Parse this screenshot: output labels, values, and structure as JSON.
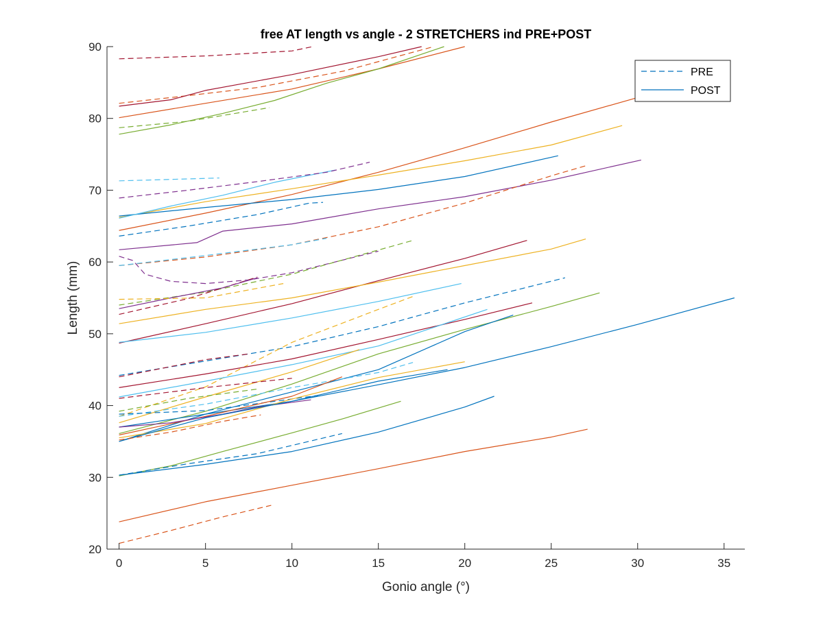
{
  "chart_data": {
    "type": "line",
    "title": "free AT length vs angle - 2 STRETCHERS ind PRE+POST",
    "xlabel": "Gonio angle (°)",
    "ylabel": "Length (mm)",
    "xlim": [
      -0.7,
      36.2
    ],
    "ylim": [
      20,
      90
    ],
    "xticks": [
      0,
      5,
      10,
      15,
      20,
      25,
      30,
      35
    ],
    "yticks": [
      20,
      30,
      40,
      50,
      60,
      70,
      80,
      90
    ],
    "grid": false,
    "legend": {
      "position": "top-right",
      "entries": [
        {
          "label": "PRE",
          "style": "dashed",
          "color": "#0072BD"
        },
        {
          "label": "POST",
          "style": "solid",
          "color": "#0072BD"
        }
      ]
    },
    "series": [
      {
        "color": "#A2142F",
        "style": "dashed",
        "points": [
          [
            0,
            88.3
          ],
          [
            5,
            88.7
          ],
          [
            10,
            89.4
          ],
          [
            11.2,
            90
          ]
        ]
      },
      {
        "color": "#D95319",
        "style": "dashed",
        "points": [
          [
            0,
            82.1
          ],
          [
            3,
            82.9
          ],
          [
            8,
            84.3
          ],
          [
            13,
            86.6
          ],
          [
            18.2,
            90
          ]
        ]
      },
      {
        "color": "#A2142F",
        "style": "solid",
        "points": [
          [
            0,
            81.7
          ],
          [
            3,
            82.6
          ],
          [
            5,
            83.9
          ],
          [
            10,
            86.1
          ],
          [
            15,
            88.6
          ],
          [
            17.5,
            90
          ]
        ]
      },
      {
        "color": "#D95319",
        "style": "solid",
        "points": [
          [
            0,
            80.1
          ],
          [
            5,
            82.1
          ],
          [
            10,
            84.1
          ],
          [
            15,
            86.9
          ],
          [
            20,
            90
          ]
        ]
      },
      {
        "color": "#77AC30",
        "style": "dashed",
        "points": [
          [
            0,
            78.7
          ],
          [
            4,
            79.6
          ],
          [
            8.7,
            81.5
          ]
        ]
      },
      {
        "color": "#77AC30",
        "style": "solid",
        "points": [
          [
            0,
            77.8
          ],
          [
            3,
            79.1
          ],
          [
            6,
            80.7
          ],
          [
            9,
            82.5
          ],
          [
            12,
            84.9
          ],
          [
            15,
            86.9
          ],
          [
            18.8,
            90
          ]
        ]
      },
      {
        "color": "#D95319",
        "style": "solid",
        "points": [
          [
            0,
            64.4
          ],
          [
            5,
            66.8
          ],
          [
            10,
            69.4
          ],
          [
            15,
            72.5
          ],
          [
            20,
            75.9
          ],
          [
            25,
            79.5
          ],
          [
            30,
            82.9
          ],
          [
            31.8,
            84.2
          ]
        ]
      },
      {
        "color": "#EDB120",
        "style": "solid",
        "points": [
          [
            0,
            66.2
          ],
          [
            5,
            68.4
          ],
          [
            10,
            70.2
          ],
          [
            15,
            72.1
          ],
          [
            20,
            74.1
          ],
          [
            25,
            76.3
          ],
          [
            29.1,
            79
          ]
        ]
      },
      {
        "color": "#0072BD",
        "style": "solid",
        "points": [
          [
            0,
            66.4
          ],
          [
            5,
            67.6
          ],
          [
            10,
            68.7
          ],
          [
            15,
            70.1
          ],
          [
            20,
            71.9
          ],
          [
            25.4,
            74.8
          ]
        ]
      },
      {
        "color": "#7E2F8E",
        "style": "solid",
        "points": [
          [
            0,
            61.7
          ],
          [
            4.5,
            62.7
          ],
          [
            6,
            64.3
          ],
          [
            10,
            65.3
          ],
          [
            15,
            67.4
          ],
          [
            20,
            69.1
          ],
          [
            25,
            71.4
          ],
          [
            30.2,
            74.2
          ]
        ]
      },
      {
        "color": "#4DBEEE",
        "style": "solid",
        "points": [
          [
            0,
            66.1
          ],
          [
            3,
            67.8
          ],
          [
            6,
            69.3
          ],
          [
            9,
            71.1
          ],
          [
            12.5,
            72.8
          ]
        ]
      },
      {
        "color": "#4DBEEE",
        "style": "dashed",
        "points": [
          [
            0,
            71.3
          ],
          [
            3,
            71.5
          ],
          [
            5.8,
            71.7
          ]
        ]
      },
      {
        "color": "#7E2F8E",
        "style": "dashed",
        "points": [
          [
            0,
            68.9
          ],
          [
            4,
            70
          ],
          [
            8,
            71.2
          ],
          [
            12,
            72.5
          ],
          [
            14.5,
            73.9
          ]
        ]
      },
      {
        "color": "#D95319",
        "style": "dashed",
        "points": [
          [
            0,
            59.5
          ],
          [
            5,
            60.7
          ],
          [
            10,
            62.4
          ],
          [
            15,
            64.9
          ],
          [
            20,
            68.2
          ],
          [
            25,
            72
          ],
          [
            27,
            73.4
          ]
        ]
      },
      {
        "color": "#0072BD",
        "style": "dashed",
        "points": [
          [
            0,
            63.6
          ],
          [
            4,
            65
          ],
          [
            8,
            66.6
          ],
          [
            11,
            68.2
          ],
          [
            11.8,
            68.3
          ]
        ]
      },
      {
        "color": "#4DBEEE",
        "style": "dashed",
        "points": [
          [
            0,
            59.5
          ],
          [
            5,
            60.9
          ],
          [
            10,
            62.4
          ],
          [
            12,
            63.3
          ]
        ]
      },
      {
        "color": "#7E2F8E",
        "style": "dashed",
        "points": [
          [
            0,
            60.8
          ],
          [
            0.8,
            60.2
          ],
          [
            1.5,
            58.3
          ],
          [
            3,
            57.3
          ],
          [
            5,
            57
          ],
          [
            7.5,
            57.5
          ],
          [
            10,
            58.5
          ],
          [
            15,
            61.5
          ]
        ]
      },
      {
        "color": "#77AC30",
        "style": "dashed",
        "points": [
          [
            0,
            54
          ],
          [
            5,
            55.8
          ],
          [
            10,
            58.3
          ],
          [
            14,
            61
          ],
          [
            17,
            63
          ]
        ]
      },
      {
        "color": "#A2142F",
        "style": "dashed",
        "points": [
          [
            0,
            52.7
          ],
          [
            4,
            54.9
          ],
          [
            8,
            57.9
          ]
        ]
      },
      {
        "color": "#7E2F8E",
        "style": "solid",
        "points": [
          [
            0,
            53.5
          ],
          [
            3,
            55
          ],
          [
            6,
            56.4
          ],
          [
            8,
            57.8
          ]
        ]
      },
      {
        "color": "#EDB120",
        "style": "dashed",
        "points": [
          [
            0,
            54.8
          ],
          [
            5,
            55
          ],
          [
            9.5,
            57
          ]
        ]
      },
      {
        "color": "#A2142F",
        "style": "solid",
        "points": [
          [
            0,
            48.7
          ],
          [
            5,
            51.4
          ],
          [
            10,
            54.2
          ],
          [
            15,
            57.4
          ],
          [
            20,
            60.5
          ],
          [
            23.6,
            63
          ]
        ]
      },
      {
        "color": "#EDB120",
        "style": "solid",
        "points": [
          [
            0,
            51.4
          ],
          [
            5,
            53.4
          ],
          [
            10,
            55
          ],
          [
            15,
            57.2
          ],
          [
            20,
            59.5
          ],
          [
            25,
            61.8
          ],
          [
            27,
            63.2
          ]
        ]
      },
      {
        "color": "#4DBEEE",
        "style": "solid",
        "points": [
          [
            0,
            48.8
          ],
          [
            5,
            50.2
          ],
          [
            10,
            52.2
          ],
          [
            15,
            54.5
          ],
          [
            19.8,
            57
          ]
        ]
      },
      {
        "color": "#0072BD",
        "style": "dashed",
        "points": [
          [
            0,
            44.2
          ],
          [
            5,
            46.2
          ],
          [
            10,
            48.2
          ],
          [
            15,
            51
          ],
          [
            20,
            54.3
          ],
          [
            25.8,
            57.8
          ]
        ]
      },
      {
        "color": "#EDB120",
        "style": "dashed",
        "points": [
          [
            0,
            38.5
          ],
          [
            5,
            42.6
          ],
          [
            10,
            48.8
          ],
          [
            15,
            53.4
          ],
          [
            17,
            55.2
          ]
        ]
      },
      {
        "color": "#A2142F",
        "style": "solid",
        "points": [
          [
            0,
            42.5
          ],
          [
            5,
            44.4
          ],
          [
            10,
            46.5
          ],
          [
            15,
            49.2
          ],
          [
            20,
            52
          ],
          [
            23.9,
            54.3
          ]
        ]
      },
      {
        "color": "#77AC30",
        "style": "solid",
        "points": [
          [
            0,
            36.1
          ],
          [
            5,
            39.2
          ],
          [
            10,
            43
          ],
          [
            15,
            47.2
          ],
          [
            20,
            50.6
          ],
          [
            25,
            53.8
          ],
          [
            27.8,
            55.7
          ]
        ]
      },
      {
        "color": "#4DBEEE",
        "style": "solid",
        "points": [
          [
            0,
            41.2
          ],
          [
            5,
            43.4
          ],
          [
            10,
            45.7
          ],
          [
            15,
            48.3
          ],
          [
            21.3,
            53.4
          ]
        ]
      },
      {
        "color": "#0072BD",
        "style": "solid",
        "points": [
          [
            0,
            35
          ],
          [
            5,
            38.8
          ],
          [
            10,
            41.9
          ],
          [
            15,
            45
          ],
          [
            20,
            50.3
          ],
          [
            22.8,
            52.6
          ]
        ]
      },
      {
        "color": "#A2142F",
        "style": "dashed",
        "points": [
          [
            0,
            44
          ],
          [
            5,
            46.4
          ],
          [
            7.5,
            47.2
          ]
        ]
      },
      {
        "color": "#EDB120",
        "style": "solid",
        "points": [
          [
            0,
            37.6
          ],
          [
            5,
            41.2
          ],
          [
            10,
            44.7
          ],
          [
            13.9,
            47.8
          ]
        ]
      },
      {
        "color": "#A2142F",
        "style": "dashed",
        "points": [
          [
            0,
            41
          ],
          [
            5,
            42.5
          ],
          [
            10,
            43.8
          ]
        ]
      },
      {
        "color": "#77AC30",
        "style": "dashed",
        "points": [
          [
            0,
            39.2
          ],
          [
            4,
            41
          ],
          [
            8,
            42.3
          ]
        ]
      },
      {
        "color": "#4DBEEE",
        "style": "dashed",
        "points": [
          [
            0,
            38.5
          ],
          [
            5,
            40.2
          ],
          [
            10,
            42.5
          ],
          [
            15,
            44.6
          ],
          [
            17,
            46
          ]
        ]
      },
      {
        "color": "#0072BD",
        "style": "dashed",
        "points": [
          [
            0,
            38.8
          ],
          [
            5,
            39.3
          ],
          [
            11.5,
            41.4
          ]
        ]
      },
      {
        "color": "#0072BD",
        "style": "solid",
        "points": [
          [
            0,
            37
          ],
          [
            5,
            38.8
          ],
          [
            10,
            40.6
          ],
          [
            15,
            43.4
          ],
          [
            19,
            45
          ]
        ]
      },
      {
        "color": "#D95319",
        "style": "solid",
        "points": [
          [
            0,
            35.9
          ],
          [
            5,
            38.5
          ],
          [
            10,
            41.3
          ],
          [
            12.9,
            44
          ]
        ]
      },
      {
        "color": "#EDB120",
        "style": "solid",
        "points": [
          [
            0,
            35.5
          ],
          [
            5,
            37.5
          ],
          [
            10,
            40.9
          ],
          [
            15,
            43.9
          ],
          [
            20,
            46.1
          ]
        ]
      },
      {
        "color": "#7E2F8E",
        "style": "solid",
        "points": [
          [
            0,
            37
          ],
          [
            3,
            37.6
          ],
          [
            6,
            38.8
          ],
          [
            8,
            39.8
          ],
          [
            11.1,
            40.8
          ]
        ]
      },
      {
        "color": "#0072BD",
        "style": "solid",
        "points": [
          [
            0,
            35
          ],
          [
            5,
            38.3
          ],
          [
            10,
            40.6
          ],
          [
            15,
            42.9
          ],
          [
            20,
            45.3
          ],
          [
            25,
            48.2
          ],
          [
            30,
            51.3
          ],
          [
            35.6,
            55
          ]
        ]
      },
      {
        "color": "#D95319",
        "style": "dashed",
        "points": [
          [
            0,
            35.2
          ],
          [
            3,
            36.3
          ],
          [
            6,
            37.8
          ],
          [
            8.2,
            38.7
          ]
        ]
      },
      {
        "color": "#77AC30",
        "style": "solid",
        "points": [
          [
            0,
            30.2
          ],
          [
            3,
            31.6
          ],
          [
            6,
            33.6
          ],
          [
            10,
            36.2
          ],
          [
            13,
            38.2
          ],
          [
            16.3,
            40.6
          ]
        ]
      },
      {
        "color": "#0072BD",
        "style": "dashed",
        "points": [
          [
            0,
            30.3
          ],
          [
            4,
            31.9
          ],
          [
            8,
            33.3
          ],
          [
            12.9,
            36.1
          ]
        ]
      },
      {
        "color": "#0072BD",
        "style": "solid",
        "points": [
          [
            0,
            30.3
          ],
          [
            5,
            31.8
          ],
          [
            10,
            33.6
          ],
          [
            15,
            36.3
          ],
          [
            20,
            39.8
          ],
          [
            21.7,
            41.3
          ]
        ]
      },
      {
        "color": "#D95319",
        "style": "solid",
        "points": [
          [
            0,
            23.8
          ],
          [
            5,
            26.6
          ],
          [
            10,
            28.9
          ],
          [
            15,
            31.2
          ],
          [
            20,
            33.6
          ],
          [
            25,
            35.6
          ],
          [
            27.1,
            36.7
          ]
        ]
      },
      {
        "color": "#D95319",
        "style": "dashed",
        "points": [
          [
            0,
            20.8
          ],
          [
            3,
            22.6
          ],
          [
            6,
            24.5
          ],
          [
            8.8,
            26.1
          ]
        ]
      }
    ]
  }
}
